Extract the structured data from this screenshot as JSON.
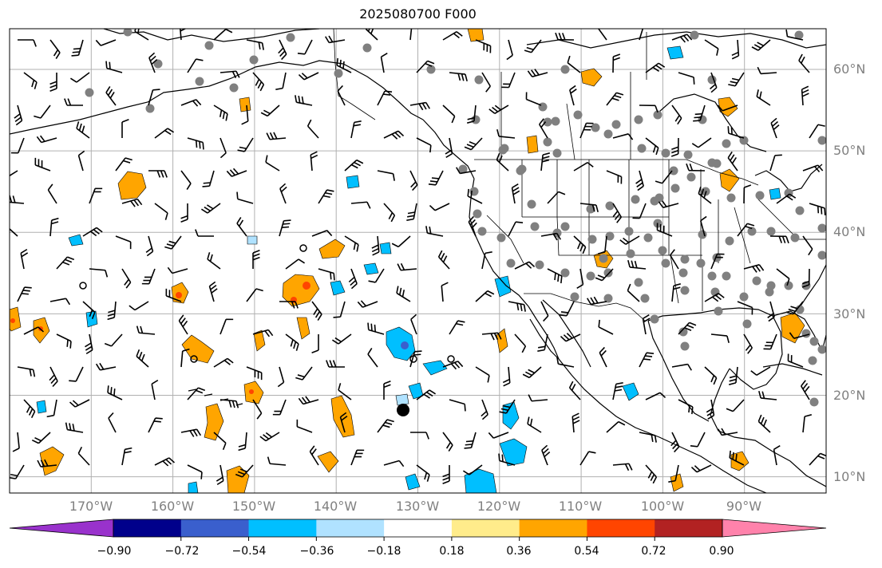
{
  "title": "2025080700 F000",
  "map": {
    "lon_range": [
      -180,
      -80
    ],
    "lat_range": [
      8,
      65
    ],
    "lat_labels": [
      "10°N",
      "20°N",
      "30°N",
      "40°N",
      "50°N",
      "60°N"
    ],
    "lat_values": [
      10,
      20,
      30,
      40,
      50,
      60
    ],
    "lon_labels": [
      "170°W",
      "160°W",
      "150°W",
      "140°W",
      "130°W",
      "120°W",
      "110°W",
      "100°W",
      "90°W"
    ],
    "lon_values": [
      -170,
      -160,
      -150,
      -140,
      -130,
      -120,
      -110,
      -100,
      -90
    ],
    "gridlines": true,
    "colors": {
      "grid": "#b0b0b0",
      "coast": "#000000",
      "station": "#808080",
      "barb": "#000000"
    }
  },
  "colorbar": {
    "tick_labels": [
      "−0.90",
      "−0.72",
      "−0.54",
      "−0.36",
      "−0.18",
      "0.18",
      "0.36",
      "0.54",
      "0.72",
      "0.90"
    ],
    "colors": [
      "#9932cc",
      "#00008b",
      "#3a5fcd",
      "#00bfff",
      "#b0e2ff",
      "#ffffff",
      "#ffec8b",
      "#ffa500",
      "#ff4500",
      "#b22222",
      "#ff82ab"
    ],
    "extend": "both"
  }
}
